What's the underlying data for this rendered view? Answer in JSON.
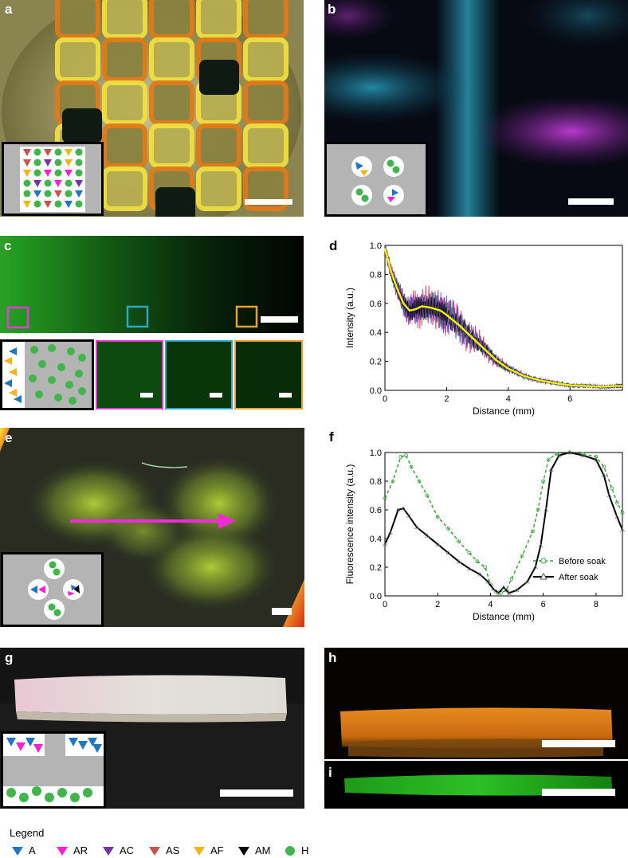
{
  "panels": {
    "a": "a",
    "b": "b",
    "c": "c",
    "d": "d",
    "e": "e",
    "f": "f",
    "g": "g",
    "h": "h",
    "i": "i"
  },
  "colors": {
    "A": "#1f77c4",
    "AR": "#ff1fd2",
    "AC": "#7b2fa8",
    "AS": "#c9524a",
    "AF": "#f5b418",
    "AM": "#000000",
    "H": "#3fb54a",
    "d_mean": "#f0f000",
    "f_before": "#2ca02c",
    "f_after": "#000000"
  },
  "icons": {
    "A": "blue-triangle-icon",
    "AR": "magenta-triangle-icon",
    "AC": "purple-triangle-icon",
    "AS": "red-triangle-icon",
    "AF": "orange-triangle-icon",
    "AM": "black-triangle-icon",
    "H": "green-circle-icon"
  },
  "legend": {
    "title": "Legend",
    "items": [
      {
        "key": "A",
        "label": "A"
      },
      {
        "key": "AR",
        "label": "AR"
      },
      {
        "key": "AC",
        "label": "AC"
      },
      {
        "key": "AS",
        "label": "AS"
      },
      {
        "key": "AF",
        "label": "AF"
      },
      {
        "key": "AM",
        "label": "AM"
      },
      {
        "key": "H",
        "label": "H"
      }
    ]
  },
  "chart_data": [
    {
      "panel": "d",
      "type": "line",
      "xlabel": "Distance (mm)",
      "ylabel": "Intensity (a.u.)",
      "xlim": [
        0,
        7.7
      ],
      "ylim": [
        0,
        1.0
      ],
      "xticks": [
        "0",
        "2",
        "4",
        "6"
      ],
      "yticks": [
        "0.0",
        "0.2",
        "0.4",
        "0.6",
        "0.8",
        "1.0"
      ],
      "grid": false,
      "series": [
        {
          "role": "mean",
          "x": [
            0,
            0.2,
            0.4,
            0.6,
            0.8,
            1.0,
            1.2,
            1.5,
            1.8,
            2.0,
            2.4,
            2.8,
            3.2,
            3.6,
            4.0,
            4.5,
            5.0,
            5.5,
            6.0,
            6.5,
            7.0,
            7.5,
            7.7
          ],
          "y": [
            0.98,
            0.82,
            0.7,
            0.6,
            0.55,
            0.56,
            0.58,
            0.57,
            0.55,
            0.52,
            0.45,
            0.37,
            0.29,
            0.21,
            0.15,
            0.1,
            0.07,
            0.05,
            0.035,
            0.03,
            0.025,
            0.03,
            0.03
          ]
        }
      ]
    },
    {
      "panel": "f",
      "type": "line",
      "xlabel": "Distance (mm)",
      "ylabel": "Fluorescence intensity (a.u.)",
      "xlim": [
        0,
        9
      ],
      "ylim": [
        0,
        1.0
      ],
      "xticks": [
        "0",
        "2",
        "4",
        "6",
        "8"
      ],
      "yticks": [
        "0.0",
        "0.2",
        "0.4",
        "0.6",
        "0.8",
        "1.0"
      ],
      "grid": false,
      "legend_position": "bottom-right",
      "series": [
        {
          "name": "Before soak",
          "style": "dashed-circle",
          "x": [
            0,
            0.3,
            0.6,
            0.8,
            1.0,
            1.3,
            1.6,
            2.0,
            2.4,
            2.8,
            3.2,
            3.5,
            3.8,
            4.0,
            4.2,
            4.4,
            4.6,
            4.8,
            5.2,
            5.6,
            5.8,
            6.0,
            6.2,
            6.5,
            7.0,
            7.5,
            8.0,
            8.3,
            8.6,
            8.8,
            9.0
          ],
          "y": [
            0.68,
            0.8,
            0.97,
            0.98,
            0.9,
            0.8,
            0.7,
            0.55,
            0.47,
            0.38,
            0.3,
            0.24,
            0.2,
            0.08,
            0.03,
            0.02,
            0.04,
            0.12,
            0.28,
            0.45,
            0.6,
            0.8,
            0.95,
            0.99,
            1.0,
            0.99,
            0.97,
            0.9,
            0.75,
            0.65,
            0.58
          ]
        },
        {
          "name": "After soak",
          "style": "solid-triangle",
          "x": [
            0,
            0.2,
            0.5,
            0.7,
            0.9,
            1.2,
            1.6,
            2.0,
            2.4,
            2.8,
            3.2,
            3.6,
            3.9,
            4.1,
            4.3,
            4.5,
            4.7,
            5.0,
            5.4,
            5.7,
            5.9,
            6.1,
            6.3,
            6.6,
            7.0,
            7.5,
            8.0,
            8.3,
            8.5,
            8.8,
            9.0
          ],
          "y": [
            0.36,
            0.44,
            0.6,
            0.61,
            0.56,
            0.48,
            0.42,
            0.36,
            0.3,
            0.24,
            0.19,
            0.15,
            0.1,
            0.05,
            0.02,
            0.06,
            0.02,
            0.04,
            0.1,
            0.2,
            0.35,
            0.6,
            0.88,
            0.98,
            1.0,
            0.98,
            0.95,
            0.84,
            0.7,
            0.55,
            0.46
          ]
        }
      ]
    }
  ]
}
